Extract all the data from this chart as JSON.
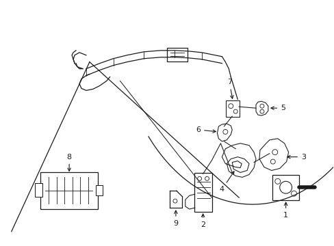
{
  "bg_color": "#ffffff",
  "line_color": "#1a1a1a",
  "figsize": [
    4.89,
    3.6
  ],
  "dpi": 100,
  "lw_main": 0.9,
  "lw_thin": 0.6,
  "label_fs": 8
}
